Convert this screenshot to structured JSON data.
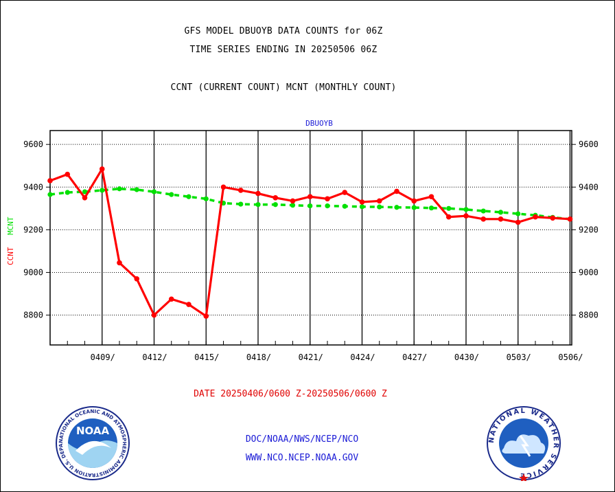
{
  "header": {
    "title_line1": "GFS MODEL DBUOYB DATA COUNTS for 06Z",
    "title_line2": "TIME SERIES ENDING IN 20250506 06Z",
    "subtitle": "CCNT (CURRENT COUNT) MCNT (MONTHLY COUNT)"
  },
  "footer": {
    "date_range": "DATE 20250406/0600 Z-20250506/0600 Z",
    "org": "DOC/NOAA/NWS/NCEP/NCO",
    "url": "WWW.NCO.NCEP.NOAA.GOV"
  },
  "logos": {
    "left": "NOAA",
    "left_ring": "NATIONAL OCEANIC AND ATMOSPHERIC ADMINISTRATION U.S. DEPARTMENT OF COMMERCE",
    "right_ring": "NATIONAL WEATHER SERVICE"
  },
  "chart_data": {
    "type": "line",
    "title": "DBUOYB",
    "ylabel_series1": "CCNT",
    "ylabel_series2": "MCNT",
    "x_tick_labels": [
      "0409/",
      "0412/",
      "0415/",
      "0418/",
      "0421/",
      "0424/",
      "0427/",
      "0430/",
      "0503/",
      "0506/"
    ],
    "x_tick_days": [
      3,
      6,
      9,
      12,
      15,
      18,
      21,
      24,
      27,
      30
    ],
    "xlim": [
      0,
      30.1
    ],
    "ylim": [
      8660,
      9665
    ],
    "yticks": [
      8800,
      9000,
      9200,
      9400,
      9600
    ],
    "grid": true,
    "series": [
      {
        "name": "CCNT",
        "color": "#ff0000",
        "x": [
          0,
          1,
          2,
          3,
          4,
          5,
          6,
          7,
          8,
          9,
          10,
          11,
          12,
          13,
          14,
          15,
          16,
          17,
          18,
          19,
          20,
          21,
          22,
          23,
          24,
          25,
          26,
          27,
          28,
          29,
          30
        ],
        "values": [
          9430,
          9460,
          9350,
          9485,
          9045,
          8970,
          8800,
          8875,
          8850,
          8795,
          9400,
          9385,
          9370,
          9350,
          9335,
          9355,
          9345,
          9375,
          9330,
          9335,
          9380,
          9335,
          9355,
          9260,
          9265,
          9250,
          9250,
          9235,
          9260,
          9255,
          9250
        ]
      },
      {
        "name": "MCNT",
        "color": "#00e000",
        "x": [
          0,
          1,
          2,
          3,
          4,
          5,
          6,
          7,
          8,
          9,
          10,
          11,
          12,
          13,
          14,
          15,
          16,
          17,
          18,
          19,
          20,
          21,
          22,
          23,
          24,
          25,
          26,
          27,
          28,
          29,
          30
        ],
        "values": [
          9365,
          9375,
          9378,
          9385,
          9392,
          9388,
          9378,
          9365,
          9355,
          9345,
          9325,
          9320,
          9318,
          9318,
          9315,
          9312,
          9312,
          9310,
          9308,
          9307,
          9305,
          9304,
          9302,
          9300,
          9295,
          9288,
          9282,
          9275,
          9268,
          9258,
          9250
        ]
      }
    ]
  }
}
